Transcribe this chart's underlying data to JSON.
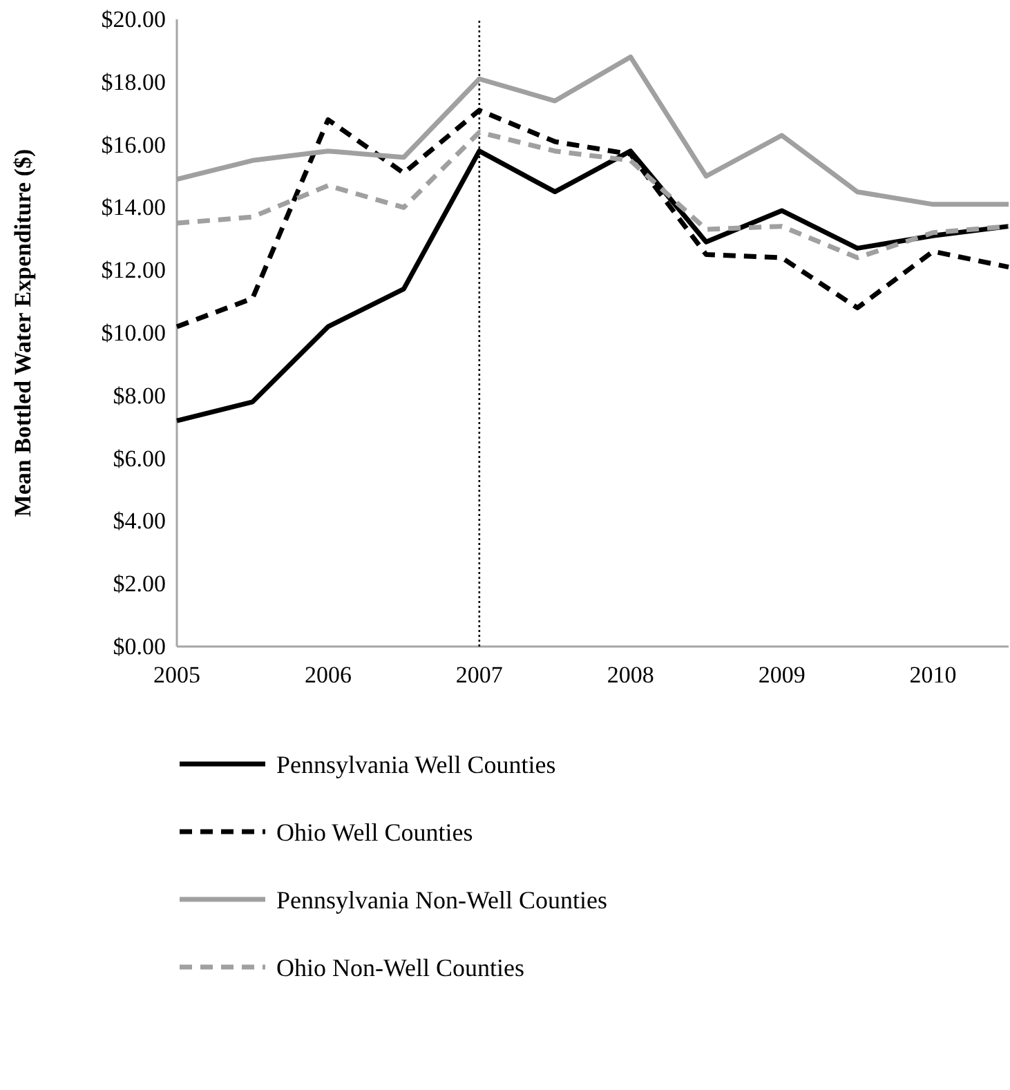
{
  "chart_data": {
    "type": "line",
    "ylabel": "Mean Bottled Water  Expenditure  ($)",
    "x": [
      2005,
      2005.5,
      2006,
      2006.5,
      2007,
      2007.5,
      2008,
      2008.5,
      2009,
      2009.5,
      2010,
      2010.5
    ],
    "xlim": [
      2005,
      2010.5
    ],
    "xticks": [
      2005,
      2006,
      2007,
      2008,
      2009,
      2010
    ],
    "ylim": [
      0,
      20
    ],
    "yticks": [
      {
        "value": 0,
        "label": "$0.00"
      },
      {
        "value": 2,
        "label": "$2.00"
      },
      {
        "value": 4,
        "label": "$4.00"
      },
      {
        "value": 6,
        "label": "$6.00"
      },
      {
        "value": 8,
        "label": "$8.00"
      },
      {
        "value": 10,
        "label": "$10.00"
      },
      {
        "value": 12,
        "label": "$12.00"
      },
      {
        "value": 14,
        "label": "$14.00"
      },
      {
        "value": 16,
        "label": "$16.00"
      },
      {
        "value": 18,
        "label": "$18.00"
      },
      {
        "value": 20,
        "label": "$20.00"
      }
    ],
    "grid": false,
    "legend": "bottom",
    "marker": "none",
    "ref_lines": [
      {
        "axis": "x",
        "value": 2007,
        "color": "#000000",
        "line_style": "dotted"
      }
    ],
    "series": [
      {
        "name": "Pennsylvania Well Counties",
        "color": "#000000",
        "line_style": "solid",
        "values": [
          7.2,
          7.8,
          10.2,
          11.4,
          15.8,
          14.5,
          15.8,
          12.9,
          13.9,
          12.7,
          13.1,
          13.4
        ]
      },
      {
        "name": "Ohio Well Counties",
        "color": "#000000",
        "line_style": "dashed",
        "values": [
          10.2,
          11.1,
          16.8,
          15.1,
          17.1,
          16.1,
          15.7,
          12.5,
          12.4,
          10.8,
          12.6,
          12.1
        ]
      },
      {
        "name": "Pennsylvania Non-Well Counties",
        "color": "#a0a0a0",
        "line_style": "solid",
        "values": [
          14.9,
          15.5,
          15.8,
          15.6,
          18.1,
          17.4,
          18.8,
          15.0,
          16.3,
          14.5,
          14.1,
          14.1
        ]
      },
      {
        "name": "Ohio Non-Well Counties",
        "color": "#a0a0a0",
        "line_style": "dashed",
        "values": [
          13.5,
          13.7,
          14.7,
          14.0,
          16.4,
          15.8,
          15.5,
          13.3,
          13.4,
          12.4,
          13.2,
          13.4
        ]
      }
    ]
  }
}
